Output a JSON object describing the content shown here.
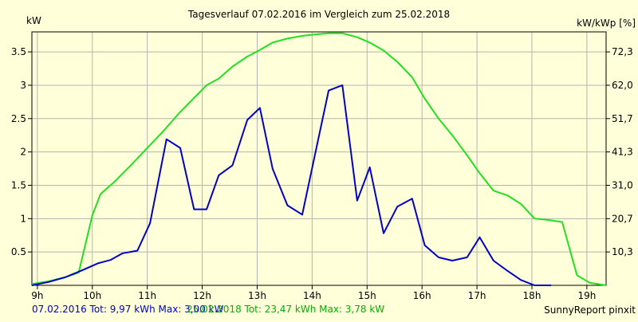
{
  "chart_data": {
    "type": "line",
    "title": "Tagesverlauf 07.02.2016 im Vergleich zum 25.02.2018",
    "ylabel_left": "kW",
    "ylabel_right": "kW/kWp [%]",
    "x_tick_labels": [
      "9h",
      "10h",
      "11h",
      "12h",
      "13h",
      "14h",
      "15h",
      "16h",
      "17h",
      "18h",
      "19h"
    ],
    "x_ticks": [
      9,
      10,
      11,
      12,
      13,
      14,
      15,
      16,
      17,
      18,
      19
    ],
    "xlim": [
      8.9,
      19.35
    ],
    "ylim": [
      0,
      3.8
    ],
    "y_ticks_left": [
      0.5,
      1,
      1.5,
      2,
      2.5,
      3,
      3.5
    ],
    "y_tick_labels_left": [
      "0.5",
      "1",
      "1.5",
      "2",
      "2.5",
      "3",
      "3.5"
    ],
    "y_ticks_right_values": [
      0.5,
      1,
      1.5,
      2,
      2.5,
      3,
      3.5
    ],
    "y_tick_labels_right": [
      "10,3",
      "20,7",
      "31,0",
      "41,3",
      "51,7",
      "62,0",
      "72,3"
    ],
    "grid": true,
    "series": [
      {
        "name": "07.02.2016",
        "color": "#0000c8",
        "x": [
          8.9,
          9.2,
          9.5,
          9.8,
          10.1,
          10.33,
          10.55,
          10.82,
          11.05,
          11.35,
          11.6,
          11.85,
          12.08,
          12.3,
          12.55,
          12.82,
          13.05,
          13.28,
          13.55,
          13.82,
          14.05,
          14.3,
          14.55,
          14.82,
          15.05,
          15.3,
          15.55,
          15.82,
          16.05,
          16.3,
          16.55,
          16.82,
          17.05,
          17.3,
          17.55,
          17.8,
          18.05,
          18.35
        ],
        "y": [
          0.0,
          0.05,
          0.12,
          0.22,
          0.33,
          0.38,
          0.48,
          0.52,
          0.93,
          2.19,
          2.06,
          1.14,
          1.14,
          1.65,
          1.8,
          2.48,
          2.66,
          1.75,
          1.2,
          1.06,
          1.95,
          2.92,
          3.0,
          1.27,
          1.77,
          0.78,
          1.18,
          1.3,
          0.6,
          0.42,
          0.37,
          0.42,
          0.72,
          0.37,
          0.22,
          0.08,
          0.0,
          0.0
        ]
      },
      {
        "name": "25.02.2018",
        "color": "#20e020",
        "x": [
          8.9,
          9.2,
          9.5,
          9.75,
          10.0,
          10.15,
          10.4,
          10.7,
          11.0,
          11.3,
          11.6,
          11.9,
          12.08,
          12.3,
          12.55,
          12.82,
          13.05,
          13.28,
          13.55,
          13.82,
          14.05,
          14.3,
          14.55,
          14.82,
          15.05,
          15.3,
          15.55,
          15.82,
          16.05,
          16.3,
          16.55,
          16.82,
          17.05,
          17.3,
          17.55,
          17.8,
          18.05,
          18.3,
          18.55,
          18.82,
          19.05,
          19.35
        ],
        "y": [
          0.02,
          0.06,
          0.12,
          0.19,
          1.05,
          1.37,
          1.55,
          1.8,
          2.06,
          2.32,
          2.6,
          2.85,
          3.0,
          3.1,
          3.28,
          3.43,
          3.53,
          3.64,
          3.7,
          3.74,
          3.76,
          3.78,
          3.78,
          3.72,
          3.64,
          3.52,
          3.35,
          3.12,
          2.8,
          2.5,
          2.25,
          1.95,
          1.68,
          1.42,
          1.35,
          1.22,
          1.0,
          0.98,
          0.95,
          0.15,
          0.04,
          0.0
        ]
      }
    ],
    "footer": {
      "series1_text": "07.02.2016 Tot: 9,97 kWh Max: 3,00 kW",
      "series2_text": "25.02.2018 Tot: 23,47 kWh Max: 3,78 kW",
      "credit": "SunnyReport pinxit"
    },
    "colors": {
      "background": "#ffffd9",
      "grid": "#b4b4b4",
      "axes": "#000000"
    }
  }
}
